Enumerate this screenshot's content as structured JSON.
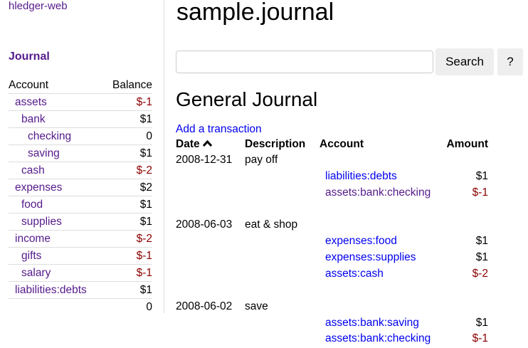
{
  "sidebar": {
    "app_link": "hledger-web",
    "journal_link": "Journal",
    "headers": {
      "account": "Account",
      "balance": "Balance"
    },
    "accounts": [
      {
        "name": "assets",
        "depth": 0,
        "balance": "$-1",
        "negative": true
      },
      {
        "name": "bank",
        "depth": 1,
        "balance": "$1",
        "negative": false
      },
      {
        "name": "checking",
        "depth": 2,
        "balance": "0",
        "negative": false
      },
      {
        "name": "saving",
        "depth": 2,
        "balance": "$1",
        "negative": false
      },
      {
        "name": "cash",
        "depth": 1,
        "balance": "$-2",
        "negative": true
      },
      {
        "name": "expenses",
        "depth": 0,
        "balance": "$2",
        "negative": false
      },
      {
        "name": "food",
        "depth": 1,
        "balance": "$1",
        "negative": false
      },
      {
        "name": "supplies",
        "depth": 1,
        "balance": "$1",
        "negative": false
      },
      {
        "name": "income",
        "depth": 0,
        "balance": "$-2",
        "negative": true
      },
      {
        "name": "gifts",
        "depth": 1,
        "balance": "$-1",
        "negative": true
      },
      {
        "name": "salary",
        "depth": 1,
        "balance": "$-1",
        "negative": true
      },
      {
        "name": "liabilities:debts",
        "depth": 0,
        "balance": "$1",
        "negative": false
      }
    ],
    "total": "0"
  },
  "header": {
    "title": "sample.journal",
    "search_value": "",
    "search_label": "Search",
    "help_label": "?"
  },
  "journal": {
    "title": "General Journal",
    "add_link": "Add a transaction",
    "columns": {
      "date": "Date",
      "sort_icon": "chevron-up-icon",
      "description": "Description",
      "account": "Account",
      "amount": "Amount"
    },
    "transactions": [
      {
        "date": "2008-12-31",
        "description": "pay off",
        "postings": [
          {
            "account": "liabilities:debts",
            "amount": "$1",
            "visited": false
          },
          {
            "account": "assets:bank:checking",
            "amount": "$-1",
            "visited": true
          }
        ]
      },
      {
        "date": "2008-06-03",
        "description": "eat & shop",
        "postings": [
          {
            "account": "expenses:food",
            "amount": "$1",
            "visited": false
          },
          {
            "account": "expenses:supplies",
            "amount": "$1",
            "visited": false
          },
          {
            "account": "assets:cash",
            "amount": "$-2",
            "visited": false
          }
        ]
      },
      {
        "date": "2008-06-02",
        "description": "save",
        "postings": [
          {
            "account": "assets:bank:saving",
            "amount": "$1",
            "visited": false
          },
          {
            "account": "assets:bank:checking",
            "amount": "$-1",
            "visited": false
          }
        ]
      }
    ]
  },
  "colors": {
    "link": "#0000ee",
    "visited": "#551a8b",
    "negative": "#8b0000"
  }
}
